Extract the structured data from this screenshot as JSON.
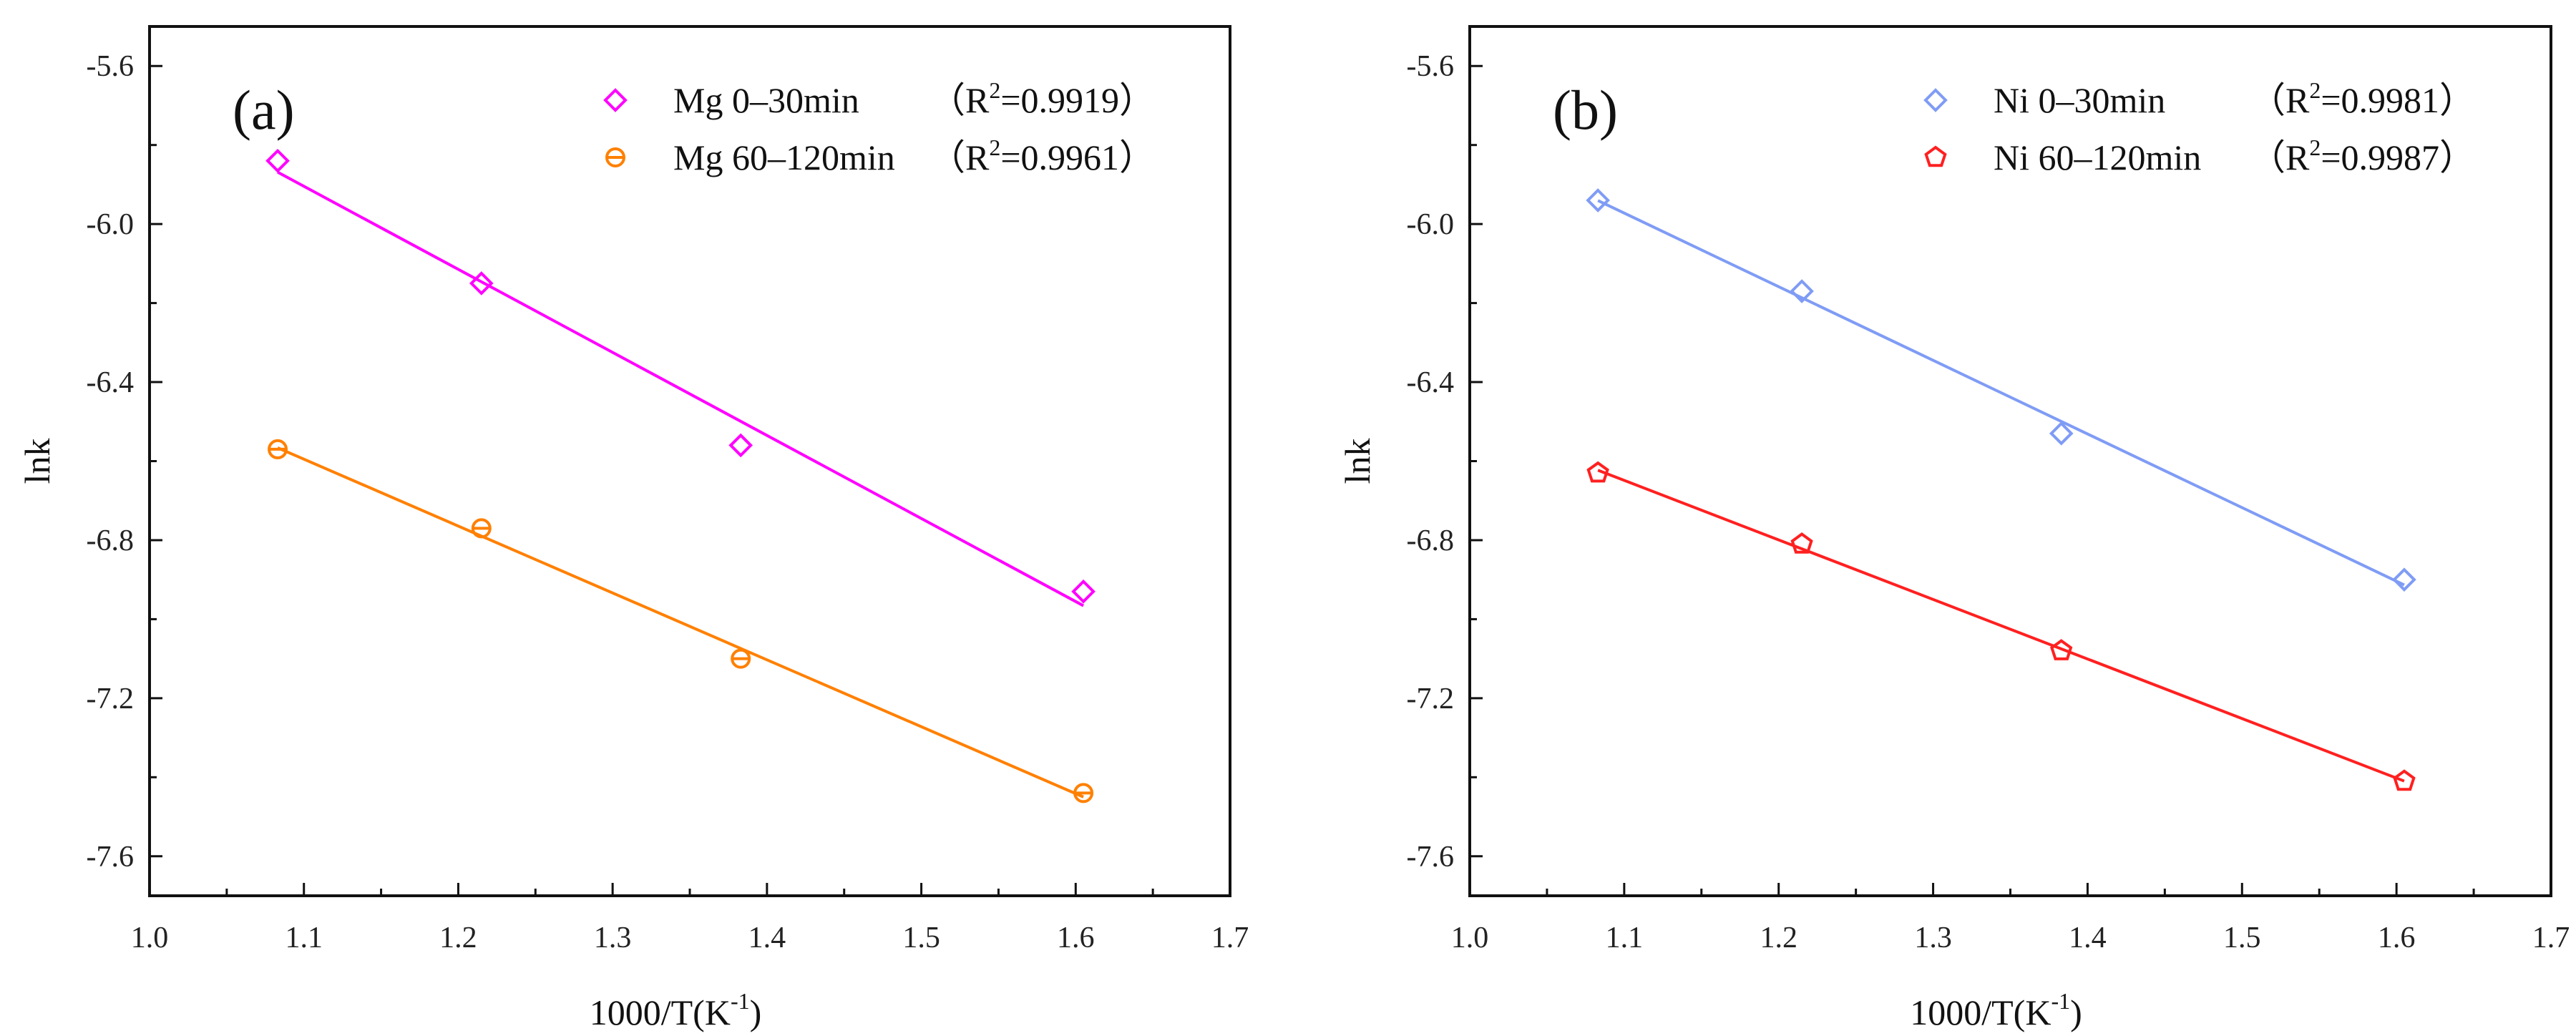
{
  "chart_data": [
    {
      "type": "scatter",
      "panel_label": "(a)",
      "xlabel": "1000/T(K",
      "xlabel_sup": "-1",
      "xlabel_end": ")",
      "ylabel": "lnk",
      "xlim": [
        1.0,
        1.7
      ],
      "ylim": [
        -7.7,
        -5.5
      ],
      "xticks": [
        "1.0",
        "1.1",
        "1.2",
        "1.3",
        "1.4",
        "1.5",
        "1.6",
        "1.7"
      ],
      "yticks": [
        "-5.6",
        "-6.0",
        "-6.4",
        "-6.8",
        "-7.2",
        "-7.6"
      ],
      "legend_position": "top-right",
      "series": [
        {
          "name": "Mg 0–30min",
          "r2_open": "（R",
          "r2_sup": "2",
          "r2_value": "=0.9919）",
          "color": "#ff00ff",
          "marker": "diamond",
          "x": [
            1.083,
            1.215,
            1.383,
            1.605
          ],
          "y": [
            -5.84,
            -6.15,
            -6.56,
            -6.93
          ],
          "fit": true
        },
        {
          "name": "Mg 60–120min",
          "r2_open": "（R",
          "r2_sup": "2",
          "r2_value": "=0.9961）",
          "color": "#ff8000",
          "marker": "circle-bar",
          "x": [
            1.083,
            1.215,
            1.383,
            1.605
          ],
          "y": [
            -6.57,
            -6.77,
            -7.1,
            -7.44
          ],
          "fit": true
        }
      ]
    },
    {
      "type": "scatter",
      "panel_label": "(b)",
      "xlabel": "1000/T(K",
      "xlabel_sup": "-1",
      "xlabel_end": ")",
      "ylabel": "lnk",
      "xlim": [
        1.0,
        1.7
      ],
      "ylim": [
        -7.7,
        -5.5
      ],
      "xticks": [
        "1.0",
        "1.1",
        "1.2",
        "1.3",
        "1.4",
        "1.5",
        "1.6",
        "1.7"
      ],
      "yticks": [
        "-5.6",
        "-6.0",
        "-6.4",
        "-6.8",
        "-7.2",
        "-7.6"
      ],
      "legend_position": "top-right",
      "series": [
        {
          "name": "Ni 0–30min",
          "r2_open": "（R",
          "r2_sup": "2",
          "r2_value": "=0.9981）",
          "color": "#7f9cf5",
          "marker": "diamond",
          "x": [
            1.083,
            1.215,
            1.383,
            1.605
          ],
          "y": [
            -5.94,
            -6.17,
            -6.53,
            -6.9
          ],
          "fit": true
        },
        {
          "name": "Ni 60–120min",
          "r2_open": "（R",
          "r2_sup": "2",
          "r2_value": "=0.9987）",
          "color": "#ff2020",
          "marker": "pentagon",
          "x": [
            1.083,
            1.215,
            1.383,
            1.605
          ],
          "y": [
            -6.63,
            -6.81,
            -7.08,
            -7.41
          ],
          "fit": true
        }
      ]
    }
  ]
}
